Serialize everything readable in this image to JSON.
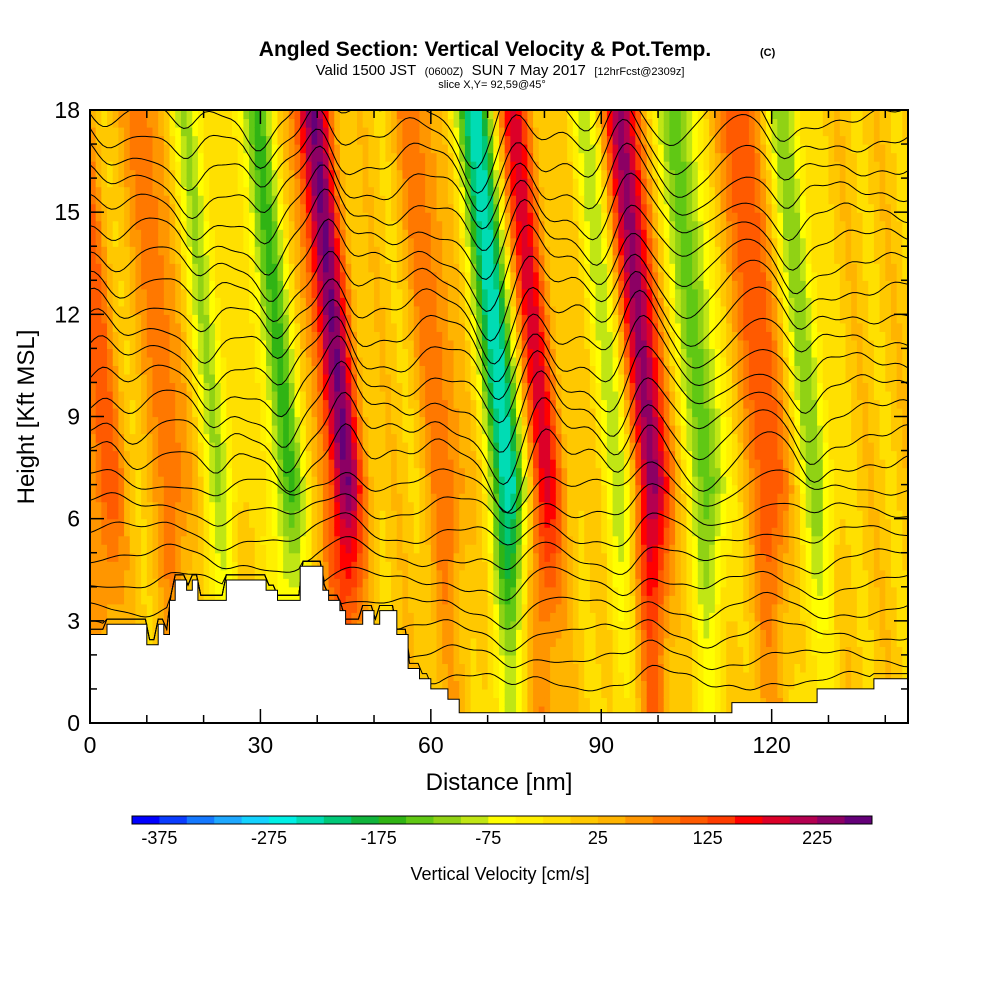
{
  "chart_data": {
    "type": "heatmap",
    "title": "Angled Section: Vertical Velocity & Pot.Temp.",
    "title_copyright": "(C)",
    "subtitle_parts": [
      "Valid 1500 JST",
      "(0600Z)",
      "SUN 7 May 2017",
      "[12hrFcst@2309z]"
    ],
    "slice_text": "slice X,Y= 92,59@45°",
    "xlabel": "Distance [nm]",
    "ylabel": "Height [Kft MSL]",
    "xlim": [
      0,
      144
    ],
    "ylim": [
      0,
      18
    ],
    "x_ticks": [
      0,
      30,
      60,
      90,
      120
    ],
    "y_ticks": [
      0,
      3,
      6,
      9,
      12,
      15,
      18
    ],
    "colorbar": {
      "label": "Vertical Velocity [cm/s]",
      "ticks": [
        -375,
        -275,
        -175,
        -75,
        25,
        125,
        225
      ],
      "min": -400,
      "max": 275,
      "step": 25,
      "colors": [
        "#0000ff",
        "#0a3cff",
        "#1478ff",
        "#1ea8ff",
        "#14d2ff",
        "#00f0e6",
        "#00dcb4",
        "#00c878",
        "#10b43c",
        "#30b414",
        "#60c814",
        "#90d214",
        "#c0e614",
        "#ffff00",
        "#fff000",
        "#ffe000",
        "#ffc800",
        "#ffb400",
        "#ff9600",
        "#ff7800",
        "#ff5a00",
        "#ff3c00",
        "#ff0000",
        "#dc0028",
        "#b40050",
        "#8c0064",
        "#640078"
      ]
    },
    "updrafts": [
      {
        "x": 45,
        "w": 240
      },
      {
        "x": 99,
        "w": 250
      },
      {
        "x": 80,
        "w": 180
      },
      {
        "x": 3,
        "w": 110
      },
      {
        "x": 15,
        "w": 90
      },
      {
        "x": 120,
        "w": 130
      },
      {
        "x": 63,
        "w": 90
      }
    ],
    "downdrafts": [
      {
        "x": 74,
        "w": -275
      },
      {
        "x": 35,
        "w": -160
      },
      {
        "x": 109,
        "w": -160
      },
      {
        "x": 128,
        "w": -120
      },
      {
        "x": 94,
        "w": -110
      },
      {
        "x": 23,
        "w": -100
      }
    ],
    "terrain": [
      {
        "x": 0,
        "h": 2.6
      },
      {
        "x": 3,
        "h": 2.6
      },
      {
        "x": 3,
        "h": 2.9
      },
      {
        "x": 10,
        "h": 2.9
      },
      {
        "x": 10,
        "h": 2.3
      },
      {
        "x": 12,
        "h": 2.3
      },
      {
        "x": 12,
        "h": 2.9
      },
      {
        "x": 13,
        "h": 2.9
      },
      {
        "x": 13,
        "h": 2.6
      },
      {
        "x": 14,
        "h": 2.6
      },
      {
        "x": 14,
        "h": 3.6
      },
      {
        "x": 15,
        "h": 3.6
      },
      {
        "x": 15,
        "h": 4.2
      },
      {
        "x": 17,
        "h": 4.2
      },
      {
        "x": 17,
        "h": 3.9
      },
      {
        "x": 18,
        "h": 3.9
      },
      {
        "x": 18,
        "h": 4.2
      },
      {
        "x": 19,
        "h": 4.2
      },
      {
        "x": 19,
        "h": 3.6
      },
      {
        "x": 24,
        "h": 3.6
      },
      {
        "x": 24,
        "h": 4.2
      },
      {
        "x": 31,
        "h": 4.2
      },
      {
        "x": 31,
        "h": 3.9
      },
      {
        "x": 33,
        "h": 3.9
      },
      {
        "x": 33,
        "h": 3.6
      },
      {
        "x": 37,
        "h": 3.6
      },
      {
        "x": 37,
        "h": 4.6
      },
      {
        "x": 41,
        "h": 4.6
      },
      {
        "x": 41,
        "h": 3.9
      },
      {
        "x": 42,
        "h": 3.9
      },
      {
        "x": 42,
        "h": 3.6
      },
      {
        "x": 44,
        "h": 3.6
      },
      {
        "x": 44,
        "h": 3.3
      },
      {
        "x": 45,
        "h": 3.3
      },
      {
        "x": 45,
        "h": 2.9
      },
      {
        "x": 48,
        "h": 2.9
      },
      {
        "x": 48,
        "h": 3.3
      },
      {
        "x": 50,
        "h": 3.3
      },
      {
        "x": 50,
        "h": 2.9
      },
      {
        "x": 51,
        "h": 2.9
      },
      {
        "x": 51,
        "h": 3.3
      },
      {
        "x": 54,
        "h": 3.3
      },
      {
        "x": 54,
        "h": 2.6
      },
      {
        "x": 56,
        "h": 2.6
      },
      {
        "x": 56,
        "h": 1.6
      },
      {
        "x": 58,
        "h": 1.6
      },
      {
        "x": 58,
        "h": 1.3
      },
      {
        "x": 60,
        "h": 1.3
      },
      {
        "x": 60,
        "h": 1.0
      },
      {
        "x": 63,
        "h": 1.0
      },
      {
        "x": 63,
        "h": 0.7
      },
      {
        "x": 65,
        "h": 0.7
      },
      {
        "x": 65,
        "h": 0.3
      },
      {
        "x": 113,
        "h": 0.3
      },
      {
        "x": 113,
        "h": 0.6
      },
      {
        "x": 128,
        "h": 0.6
      },
      {
        "x": 128,
        "h": 1.0
      },
      {
        "x": 138,
        "h": 1.0
      },
      {
        "x": 138,
        "h": 1.3
      },
      {
        "x": 144,
        "h": 1.3
      }
    ],
    "theta_levels": 24
  }
}
